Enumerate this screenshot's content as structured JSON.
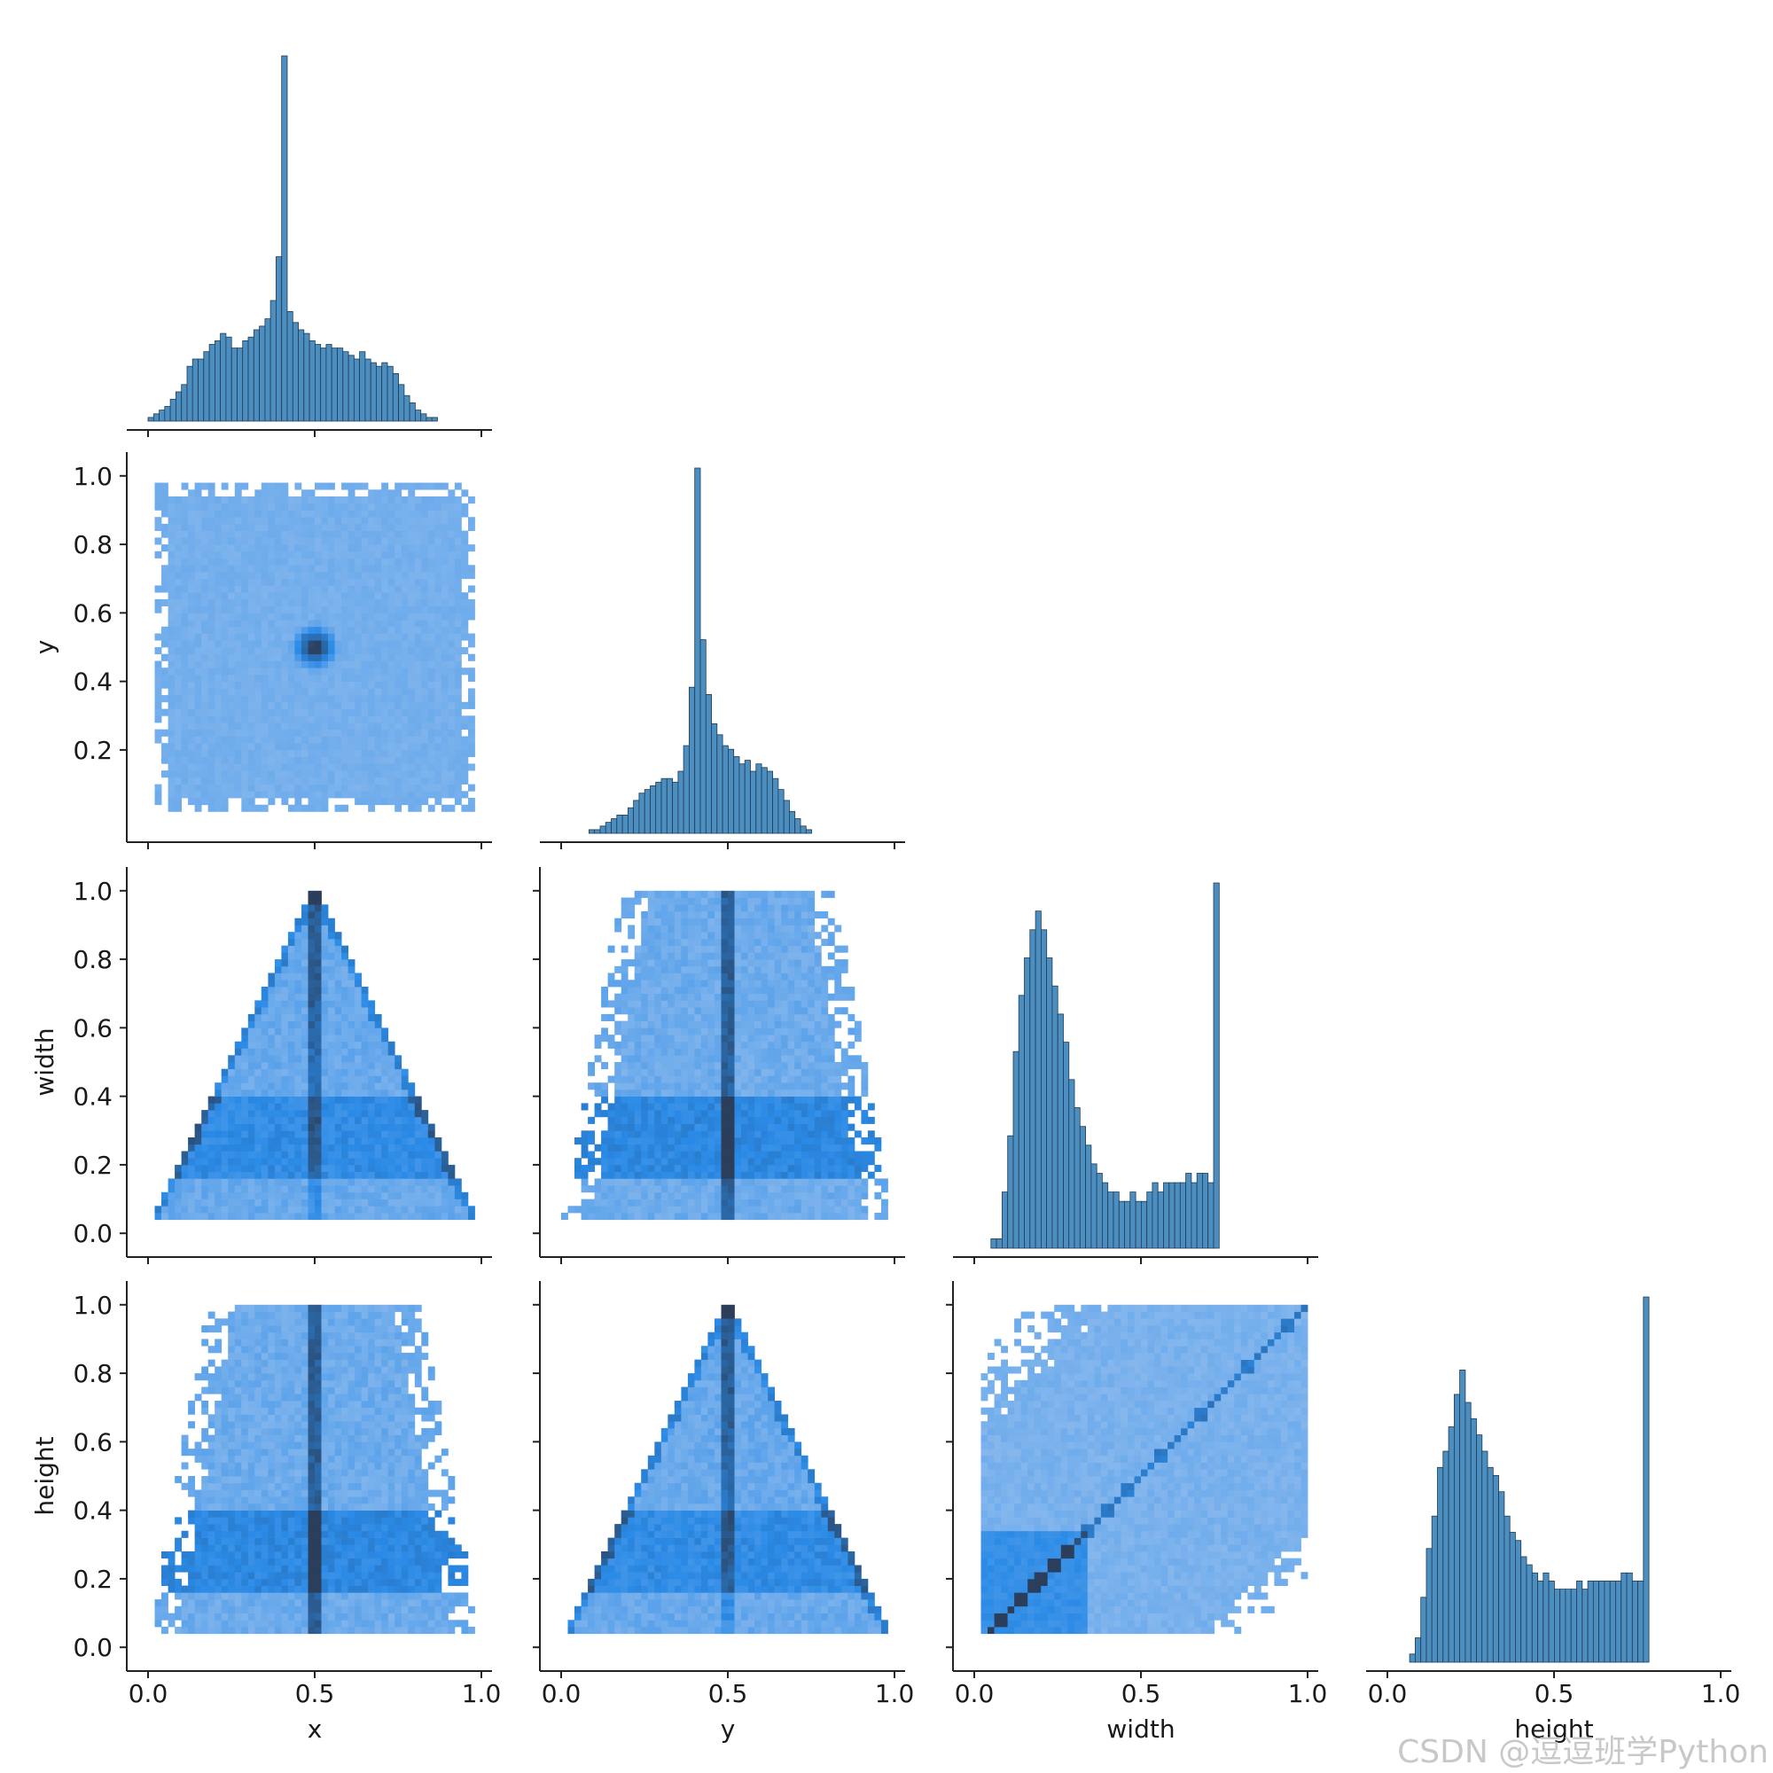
{
  "chart_data": {
    "type": "pairplot",
    "variables": [
      "x",
      "y",
      "width",
      "height"
    ],
    "layout": "corner",
    "diagonal": "histogram",
    "off_diagonal": "2d-histogram",
    "colors": {
      "hist": "#4c8ec0",
      "hist_edge": "#1f3b55",
      "heat_low": "#a8c8f0",
      "heat_mid": "#2a8ae6",
      "heat_high": "#2b3f5c"
    },
    "axes": {
      "x": {
        "label": "x",
        "range": [
          0,
          1
        ],
        "ticks": [
          "0.0",
          "0.5",
          "1.0"
        ]
      },
      "y": {
        "label": "y",
        "range": [
          0,
          1
        ],
        "ticks": [
          "0.2",
          "0.4",
          "0.6",
          "0.8",
          "1.0"
        ]
      },
      "width": {
        "label": "width",
        "range": [
          0,
          1
        ],
        "ticks": [
          "0.0",
          "0.2",
          "0.4",
          "0.6",
          "0.8",
          "1.0"
        ],
        "x_ticks": [
          "0.0",
          "0.5",
          "1.0"
        ]
      },
      "height": {
        "label": "height",
        "range": [
          0,
          1
        ],
        "ticks": [
          "0.0",
          "0.2",
          "0.4",
          "0.6",
          "0.8",
          "1.0"
        ],
        "x_ticks": [
          "0.0",
          "0.5",
          "1.0"
        ]
      }
    },
    "histograms": {
      "x": {
        "bin_start": 0.0,
        "bin_width": 0.0167,
        "counts": [
          1,
          2,
          3,
          4,
          6,
          8,
          10,
          15,
          17,
          17,
          19,
          21,
          22,
          24,
          23,
          20,
          20,
          22,
          23,
          25,
          26,
          28,
          33,
          45,
          100,
          30,
          27,
          25,
          24,
          22,
          21,
          20,
          21,
          20,
          20,
          19,
          18,
          17,
          19,
          17,
          16,
          15,
          16,
          15,
          13,
          10,
          7,
          5,
          3,
          2,
          1,
          1
        ]
      },
      "y": {
        "bin_start": 0.0,
        "bin_width": 0.0167,
        "counts": [
          0,
          0,
          0,
          0,
          0,
          1,
          1,
          2,
          3,
          4,
          5,
          5,
          7,
          9,
          11,
          12,
          13,
          14,
          15,
          15,
          14,
          17,
          24,
          40,
          100,
          53,
          38,
          30,
          27,
          24,
          23,
          21,
          19,
          20,
          17,
          19,
          18,
          17,
          15,
          12,
          9,
          6,
          4,
          2,
          1,
          0
        ]
      },
      "width": {
        "bin_start": 0.0,
        "bin_width": 0.0167,
        "counts": [
          0,
          0,
          0,
          1,
          1,
          6,
          12,
          21,
          27,
          31,
          34,
          36,
          34,
          31,
          28,
          25,
          22,
          18,
          15,
          13,
          11,
          9,
          8,
          7,
          6,
          6,
          5,
          5,
          6,
          5,
          5,
          6,
          7,
          6,
          7,
          7,
          7,
          7,
          8,
          7,
          8,
          8,
          7,
          39
        ]
      },
      "height": {
        "bin_start": 0.0,
        "bin_width": 0.0167,
        "counts": [
          0,
          0,
          0,
          0,
          1,
          3,
          8,
          14,
          18,
          24,
          26,
          29,
          33,
          36,
          32,
          30,
          28,
          26,
          24,
          23,
          21,
          18,
          16,
          15,
          13,
          12,
          11,
          10,
          11,
          10,
          9,
          9,
          9,
          9,
          10,
          9,
          10,
          10,
          10,
          10,
          10,
          10,
          11,
          11,
          10,
          10,
          45
        ]
      }
    },
    "joint": [
      {
        "x": "x",
        "y": "y",
        "pattern": "uniform square with dense center spot near (0.5, 0.5)"
      },
      {
        "x": "x",
        "y": "width",
        "pattern": "triangle: width ≤ 2·min(x, 1−x), dense ridge at x=0.5 and along edges"
      },
      {
        "x": "y",
        "y": "width",
        "pattern": "dense vertical band at y=0.5, mass concentrated at width 0.2–0.4"
      },
      {
        "x": "x",
        "y": "height",
        "pattern": "dense vertical band at x=0.5, mass concentrated at height 0.2–0.4"
      },
      {
        "x": "y",
        "y": "height",
        "pattern": "triangle: height ≤ 2·min(y, 1−y), dense ridge at y=0.5"
      },
      {
        "x": "width",
        "y": "height",
        "pattern": "dense diagonal line height = width, spread cloud around it"
      }
    ]
  },
  "watermark": "CSDN @逗逗班学Python"
}
